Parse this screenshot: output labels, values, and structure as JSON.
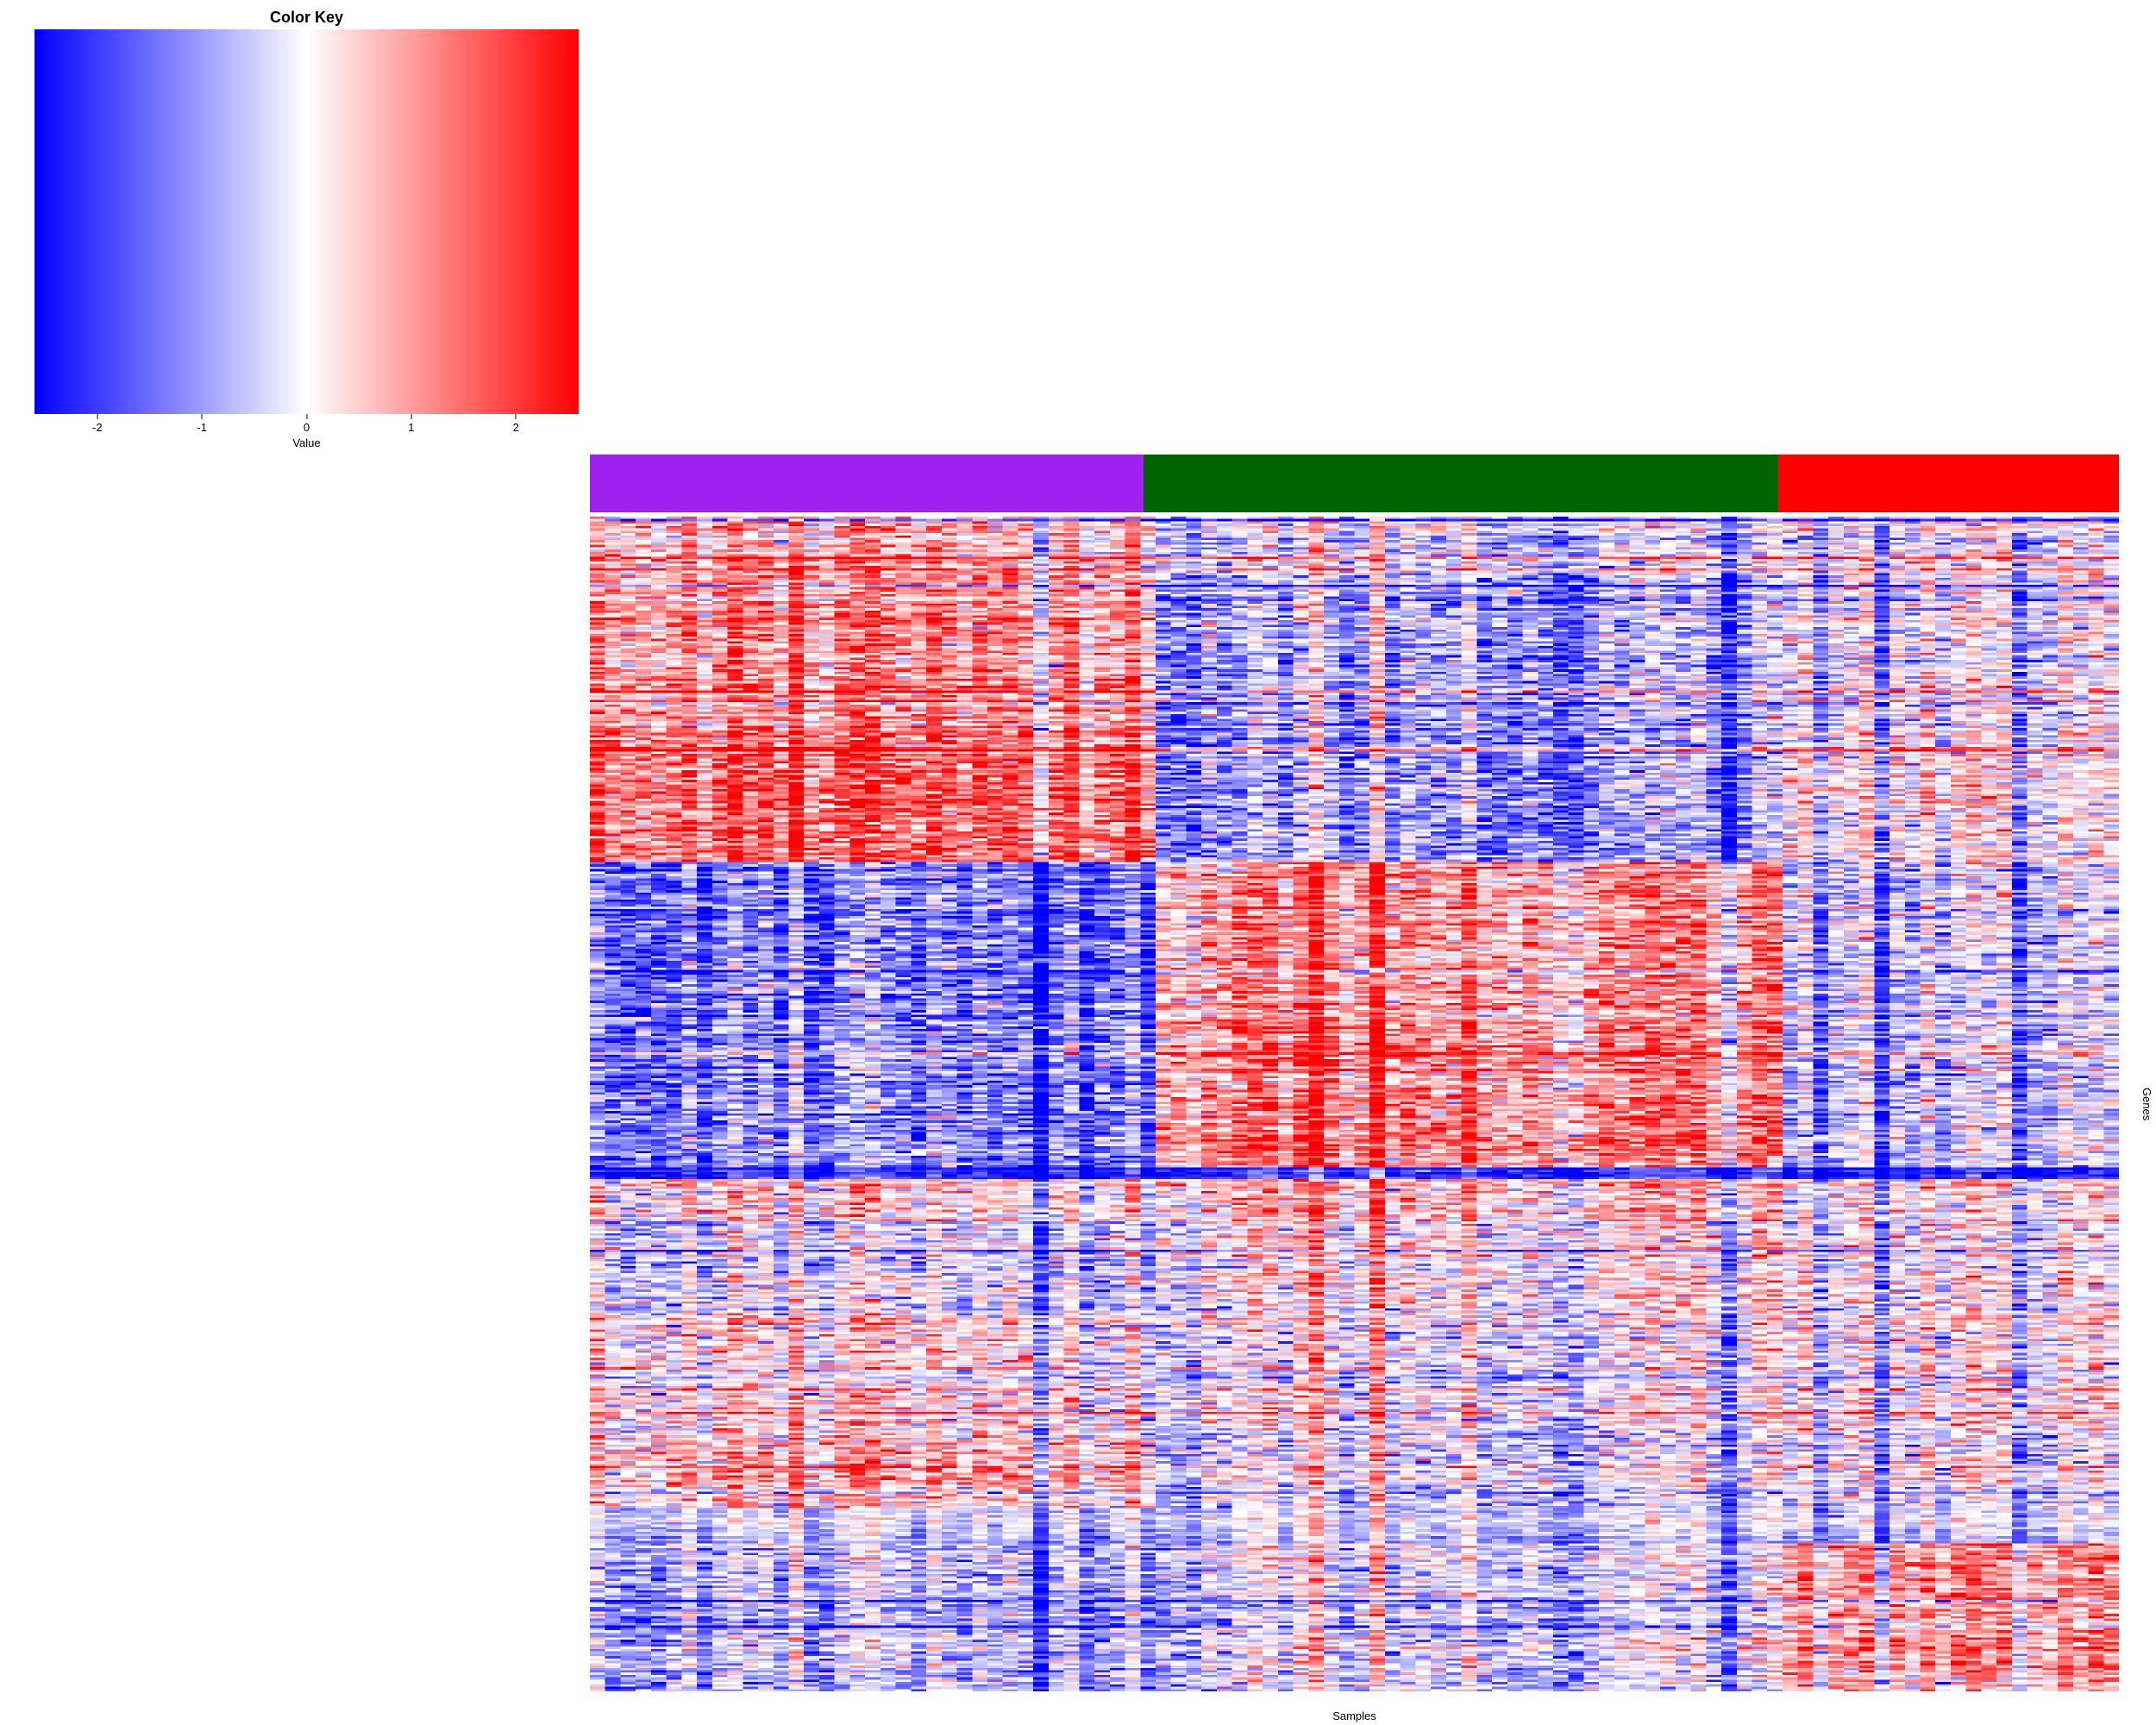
{
  "chart_data": {
    "type": "heatmap",
    "title": "",
    "xlabel": "Samples",
    "ylabel": "Genes",
    "n_cols": 100,
    "n_rows": 500,
    "value_abs_max": 2.5,
    "seed": 1337,
    "noise_sd": 0.72,
    "column_stripe_sd": 0.42,
    "column_extreme_prob": 0.14,
    "row_stripe_sd": 0.3,
    "row_extreme_prob": 0.035,
    "color_key": {
      "title": "Color Key",
      "axis_label": "Value",
      "tick_values": [
        -2,
        -1,
        0,
        1,
        2
      ],
      "tick_labels": [
        "-2",
        "-1",
        "0",
        "1",
        "2"
      ],
      "axis_range": [
        -2.6,
        2.6
      ],
      "colors": [
        "#0000ff",
        "#ffffff",
        "#ff0000"
      ]
    },
    "column_groups": [
      {
        "name": "purple",
        "color": "#a020f0",
        "fraction": 0.362
      },
      {
        "name": "green",
        "color": "#006400",
        "fraction": 0.415
      },
      {
        "name": "red",
        "color": "#ff0000",
        "fraction": 0.223
      }
    ],
    "row_blocks": [
      {
        "row_start": 0.0,
        "row_end": 0.05,
        "means": [
          0.8,
          -0.5,
          0.1
        ],
        "noise_scale": 1
      },
      {
        "row_start": 0.05,
        "row_end": 0.18,
        "means": [
          1.1,
          -0.9,
          0.0
        ],
        "noise_scale": 1
      },
      {
        "row_start": 0.18,
        "row_end": 0.295,
        "means": [
          1.5,
          -1.1,
          0.3
        ],
        "noise_scale": 1
      },
      {
        "row_start": 0.295,
        "row_end": 0.43,
        "means": [
          -1.2,
          0.9,
          -0.2
        ],
        "noise_scale": 1
      },
      {
        "row_start": 0.43,
        "row_end": 0.555,
        "means": [
          -1.1,
          1.1,
          -0.3
        ],
        "noise_scale": 1
      },
      {
        "row_start": 0.555,
        "row_end": 0.565,
        "means": [
          -1.9,
          -1.9,
          -1.9
        ],
        "noise_scale": 0.5
      },
      {
        "row_start": 0.565,
        "row_end": 0.6,
        "means": [
          0.5,
          0.6,
          0.4
        ],
        "noise_scale": 1
      },
      {
        "row_start": 0.6,
        "row_end": 0.68,
        "means": [
          -0.4,
          0.0,
          0.1
        ],
        "noise_scale": 1
      },
      {
        "row_start": 0.68,
        "row_end": 0.78,
        "means": [
          0.3,
          -0.2,
          0.3
        ],
        "noise_scale": 1
      },
      {
        "row_start": 0.78,
        "row_end": 0.845,
        "means": [
          0.6,
          -0.5,
          0.0
        ],
        "noise_scale": 1
      },
      {
        "row_start": 0.845,
        "row_end": 0.875,
        "means": [
          -0.4,
          -0.5,
          -0.2
        ],
        "noise_scale": 0.55
      },
      {
        "row_start": 0.875,
        "row_end": 0.985,
        "means": [
          -0.5,
          -0.3,
          1.3
        ],
        "noise_scale": 0.9
      },
      {
        "row_start": 0.985,
        "row_end": 1.001,
        "means": [
          -0.6,
          -0.4,
          0.9
        ],
        "noise_scale": 1
      }
    ]
  }
}
